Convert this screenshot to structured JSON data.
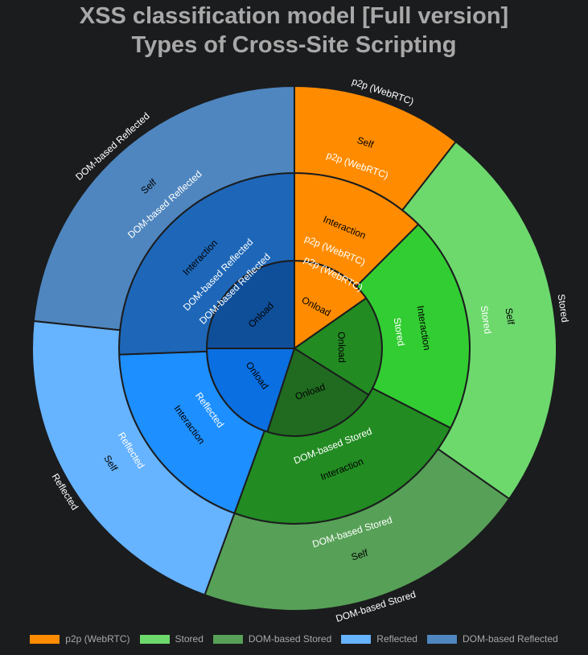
{
  "chart_data": {
    "type": "sunburst",
    "title_line1": "XSS classification model [Full version]",
    "title_line2": "Types of Cross-Site Scripting",
    "legend": [
      {
        "label": "p2p (WebRTC)",
        "color": "#ff8c00"
      },
      {
        "label": "Stored",
        "color": "#6dd96d"
      },
      {
        "label": "DOM-based Stored",
        "color": "#57a057"
      },
      {
        "label": "Reflected",
        "color": "#66b3ff"
      },
      {
        "label": "DOM-based Reflected",
        "color": "#4f86bf"
      }
    ],
    "inner_ring": [
      {
        "label": "Onload",
        "type": "p2p (WebRTC)",
        "start": 0,
        "end": 55,
        "color": "#ff8c00",
        "text_color": "#000000"
      },
      {
        "label": "Onload",
        "type": "Stored",
        "start": 55,
        "end": 122,
        "color": "#228b22",
        "text_color": "#000000"
      },
      {
        "label": "Onload",
        "type": "DOM-based Stored",
        "start": 122,
        "end": 198,
        "color": "#206b20",
        "text_color": "#000000"
      },
      {
        "label": "Onload",
        "type": "Reflected",
        "start": 198,
        "end": 270,
        "color": "#0a6fe0",
        "text_color": "#000000"
      },
      {
        "label": "Onload",
        "type": "DOM-based Reflected",
        "start": 270,
        "end": 360,
        "color": "#0f4f99",
        "text_color": "#000000"
      }
    ],
    "middle_ring": [
      {
        "label": "Interaction",
        "type": "p2p (WebRTC)",
        "start": 0,
        "end": 45,
        "color": "#ff8c00",
        "text_color": "#000000"
      },
      {
        "label": "Interaction",
        "type": "Stored",
        "start": 45,
        "end": 117,
        "color": "#32cd32",
        "text_color": "#000000"
      },
      {
        "label": "Interaction",
        "type": "DOM-based Stored",
        "start": 117,
        "end": 200,
        "color": "#228b22",
        "text_color": "#000000"
      },
      {
        "label": "Interaction",
        "type": "Reflected",
        "start": 200,
        "end": 268,
        "color": "#1e8fff",
        "text_color": "#000000"
      },
      {
        "label": "Interaction",
        "type": "DOM-based Reflected",
        "start": 268,
        "end": 360,
        "color": "#1e67b8",
        "text_color": "#000000"
      }
    ],
    "outer_ring": [
      {
        "label": "Self",
        "type": "p2p (WebRTC)",
        "start": 0,
        "end": 38,
        "color": "#ff8c00",
        "text_color": "#000000"
      },
      {
        "label": "Self",
        "type": "Stored",
        "start": 38,
        "end": 125,
        "color": "#6dd96d",
        "text_color": "#000000"
      },
      {
        "label": "Self",
        "type": "DOM-based Stored",
        "start": 125,
        "end": 200,
        "color": "#57a057",
        "text_color": "#000000"
      },
      {
        "label": "Self",
        "type": "Reflected",
        "start": 200,
        "end": 276,
        "color": "#66b3ff",
        "text_color": "#000000"
      },
      {
        "label": "Self",
        "type": "DOM-based Reflected",
        "start": 276,
        "end": 360,
        "color": "#4f86bf",
        "text_color": "#000000"
      }
    ]
  }
}
